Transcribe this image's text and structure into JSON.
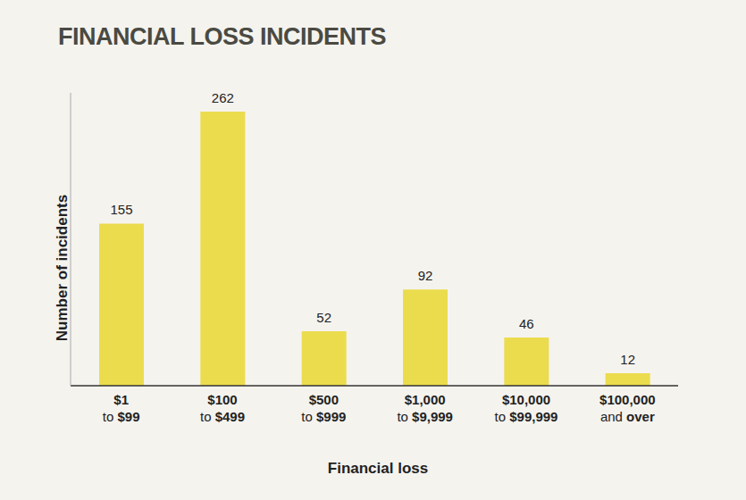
{
  "chart_data": {
    "type": "bar",
    "title": "FINANCIAL LOSS INCIDENTS",
    "x_label": "Financial loss",
    "y_label": "Number of incidents",
    "categories": [
      "$1\nto $99",
      "$100\nto $499",
      "$500\nto $999",
      "$1,000\nto $9,999",
      "$10,000\nto $99,999",
      "$100,000\nand over"
    ],
    "values": [
      155,
      262,
      52,
      92,
      46,
      12
    ],
    "color": "#ebdc4e",
    "ylim": [
      0,
      280
    ],
    "yticks": [],
    "grid": false,
    "data_labels": true,
    "tick_labels": "x"
  }
}
